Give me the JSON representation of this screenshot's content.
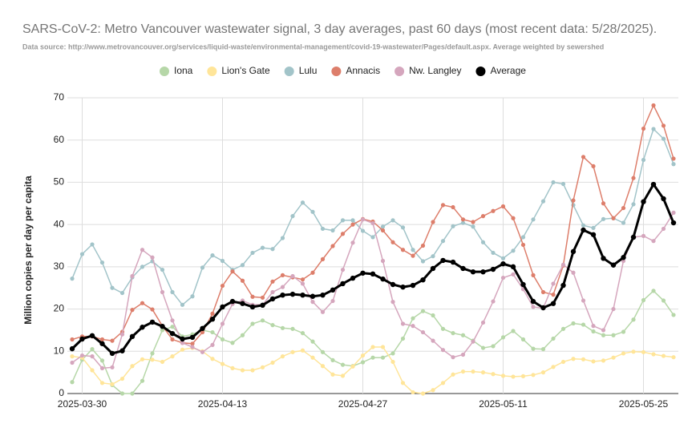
{
  "chart_data": {
    "type": "line",
    "title": "SARS-CoV-2: Metro Vancouver wastewater signal, 3 day averages, past 60 days (most recent data: 5/28/2025).",
    "subtitle": "Data source: http://www.metrovancouver.org/services/liquid-waste/environmental-management/covid-19-wastewater/Pages/default.aspx. Average weighted by sewershed",
    "y_label": "Million copies per day per capita",
    "categories": [
      "2025-03-29",
      "2025-03-30",
      "2025-03-31",
      "2025-04-01",
      "2025-04-02",
      "2025-04-03",
      "2025-04-04",
      "2025-04-05",
      "2025-04-06",
      "2025-04-07",
      "2025-04-08",
      "2025-04-09",
      "2025-04-10",
      "2025-04-11",
      "2025-04-12",
      "2025-04-13",
      "2025-04-14",
      "2025-04-15",
      "2025-04-16",
      "2025-04-17",
      "2025-04-18",
      "2025-04-19",
      "2025-04-20",
      "2025-04-21",
      "2025-04-22",
      "2025-04-23",
      "2025-04-24",
      "2025-04-25",
      "2025-04-26",
      "2025-04-27",
      "2025-04-28",
      "2025-04-29",
      "2025-04-30",
      "2025-05-01",
      "2025-05-02",
      "2025-05-03",
      "2025-05-04",
      "2025-05-05",
      "2025-05-06",
      "2025-05-07",
      "2025-05-08",
      "2025-05-09",
      "2025-05-10",
      "2025-05-11",
      "2025-05-12",
      "2025-05-13",
      "2025-05-14",
      "2025-05-15",
      "2025-05-16",
      "2025-05-17",
      "2025-05-18",
      "2025-05-19",
      "2025-05-20",
      "2025-05-21",
      "2025-05-22",
      "2025-05-23",
      "2025-05-24",
      "2025-05-25",
      "2025-05-26",
      "2025-05-27",
      "2025-05-28"
    ],
    "xticks": [
      "2025-03-30",
      "2025-04-13",
      "2025-04-27",
      "2025-05-11",
      "2025-05-25"
    ],
    "ylim": [
      0,
      70
    ],
    "yticks": [
      0,
      10,
      20,
      30,
      40,
      50,
      60,
      70
    ],
    "grid": true,
    "legend": "top",
    "series": [
      {
        "name": "Iona",
        "color": "#b6d7a8",
        "values": [
          2.7,
          8,
          10.5,
          7.8,
          2,
          0,
          0,
          3,
          9.5,
          15,
          15.8,
          13.5,
          14,
          15,
          14.5,
          12.8,
          12,
          13.8,
          16.5,
          17.3,
          16.2,
          15.5,
          15.3,
          14.3,
          12.3,
          9.8,
          7.9,
          6.8,
          6.5,
          7.4,
          8.5,
          8.5,
          9.5,
          13,
          17.8,
          19.5,
          18.5,
          15.3,
          14.3,
          13.8,
          12.5,
          10.8,
          11.2,
          13.3,
          14.8,
          12.8,
          10.6,
          10.5,
          13,
          15.3,
          16.6,
          16.3,
          14.7,
          13.8,
          13.8,
          14.6,
          17.5,
          22.1,
          24.3,
          22,
          18.6
        ]
      },
      {
        "name": "Lion's Gate",
        "color": "#ffe599",
        "values": [
          8.8,
          8.5,
          5.5,
          2.5,
          2.2,
          3.5,
          6.5,
          8.1,
          8,
          7.5,
          8.8,
          10.4,
          10.8,
          10,
          8.2,
          7,
          6,
          5.5,
          5.5,
          6.2,
          7.3,
          8.8,
          9.8,
          10.2,
          8.5,
          6.5,
          4.5,
          4.2,
          6.4,
          9,
          11,
          11,
          7.5,
          2.5,
          0.3,
          0,
          0.8,
          2.5,
          4.5,
          5.2,
          5.2,
          5,
          4.6,
          4.2,
          4,
          4.1,
          4.4,
          5,
          6.3,
          7.5,
          8.2,
          8.1,
          7.6,
          7.8,
          8.5,
          9.5,
          9.9,
          9.8,
          9.3,
          8.9,
          8.6
        ]
      },
      {
        "name": "Lulu",
        "color": "#a2c4c9",
        "values": [
          27.2,
          33,
          35.3,
          31,
          25,
          23.8,
          27.5,
          30,
          31.3,
          29.3,
          24,
          21,
          23,
          29.8,
          32.7,
          31.4,
          29.3,
          30.4,
          33.3,
          34.5,
          34.2,
          36.8,
          42,
          45.2,
          43,
          39,
          38.6,
          41,
          41,
          38.5,
          37,
          39.5,
          41,
          39.3,
          34,
          31.3,
          32.5,
          36.1,
          39.6,
          40.4,
          39.5,
          35.8,
          33.3,
          32,
          33.8,
          37,
          41.2,
          45.5,
          50,
          49.6,
          44.6,
          39.8,
          39.2,
          41.3,
          41.5,
          40.4,
          44.8,
          55.3,
          62.6,
          60.3,
          54.3
        ]
      },
      {
        "name": "Annacis",
        "color": "#dd7e6b",
        "values": [
          12.8,
          13.5,
          13.5,
          12.8,
          12.5,
          14.6,
          19.8,
          21.4,
          19.9,
          16,
          12.8,
          12,
          11.8,
          14.5,
          18.9,
          25.5,
          28.9,
          26.7,
          22.9,
          22.7,
          26.5,
          28,
          27.5,
          27,
          28.6,
          31.8,
          34.9,
          37.8,
          40,
          41.3,
          40.7,
          38.6,
          35.8,
          34,
          32.6,
          35,
          40.6,
          44.6,
          44.1,
          41.2,
          40.6,
          42,
          43.2,
          44.3,
          41.5,
          35.2,
          28,
          24,
          23.4,
          30.3,
          45.7,
          56,
          53.8,
          45,
          41.5,
          43.9,
          51,
          62.7,
          68.2,
          63.4,
          55.6
        ]
      },
      {
        "name": "Nw. Langley",
        "color": "#d5a6bd",
        "values": [
          7.3,
          9,
          8.8,
          6,
          6.2,
          14,
          27.8,
          34,
          32.2,
          24,
          17.3,
          12,
          11,
          9.8,
          11.5,
          16.5,
          21.2,
          22,
          21,
          21,
          24,
          25.2,
          27.8,
          26,
          21.7,
          19.3,
          21.9,
          29.3,
          35.7,
          41.2,
          40.3,
          31.4,
          21.7,
          16.5,
          16,
          14.5,
          12.5,
          10.3,
          8.6,
          9.2,
          12.3,
          16.8,
          21.8,
          27.4,
          28.2,
          24.7,
          20.5,
          20.2,
          26,
          30.5,
          28.6,
          22,
          16,
          15,
          20,
          31.4,
          37,
          37.3,
          36.1,
          39,
          42.8
        ]
      },
      {
        "name": "Average",
        "color": "#000000",
        "values": [
          10.6,
          12.9,
          13.7,
          11.8,
          9.5,
          10.1,
          13.5,
          15.7,
          16.9,
          15.9,
          14.2,
          12.9,
          13.3,
          15.4,
          17.6,
          20.5,
          21.8,
          21.3,
          20.5,
          20.9,
          22.4,
          23.3,
          23.5,
          23.3,
          23,
          23.3,
          24.5,
          26,
          27.3,
          28.5,
          28.3,
          27.1,
          25.8,
          25.2,
          25.6,
          26.9,
          29.6,
          31.5,
          31.1,
          29.6,
          28.8,
          28.8,
          29.4,
          30.7,
          30,
          25.8,
          21.8,
          20.3,
          21.3,
          25.6,
          33.6,
          38.7,
          37.6,
          32,
          30.4,
          32.2,
          37,
          45.4,
          49.5,
          46.1,
          40.4
        ]
      }
    ]
  }
}
